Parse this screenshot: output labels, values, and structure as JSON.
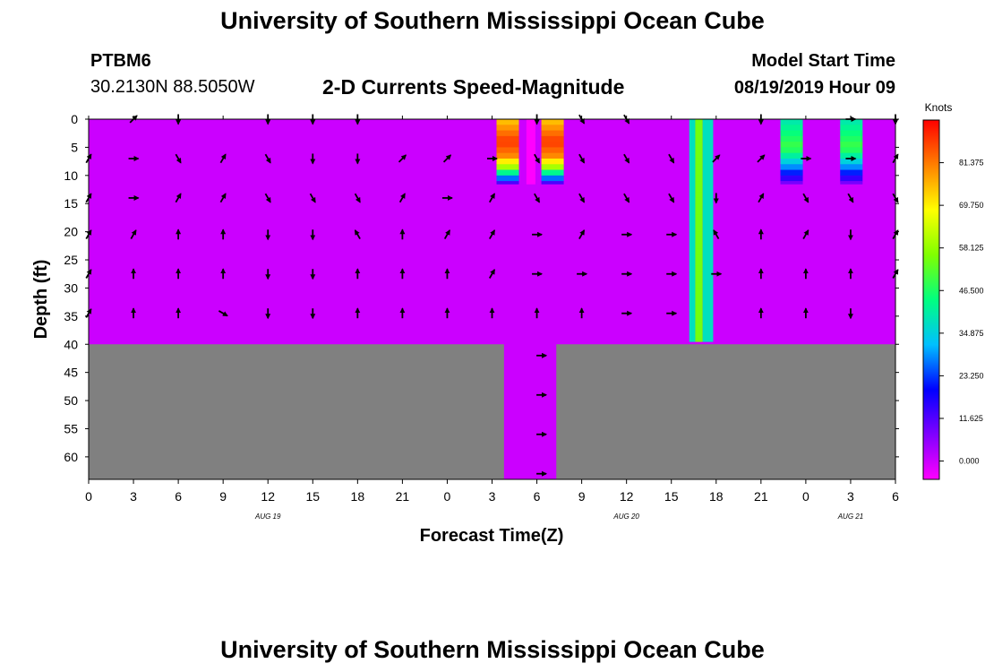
{
  "page": {
    "title_top": "University of Southern Mississippi Ocean Cube",
    "title_bottom": "University of Southern Mississippi Ocean Cube",
    "station_id": "PTBM6",
    "station_coords": "30.2130N 88.5050W",
    "chart_title": "2-D Currents Speed-Magnitude",
    "model_start_label": "Model Start Time",
    "model_start_value": "08/19/2019 Hour 09"
  },
  "chart_data": {
    "type": "heatmap",
    "title": "2-D Currents Speed-Magnitude",
    "xlabel": "Forecast Time(Z)",
    "ylabel": "Depth (ft)",
    "x_range_hours": [
      0,
      54
    ],
    "y_range_ft": [
      0,
      64
    ],
    "x_ticks": [
      {
        "h": 0,
        "label": "0"
      },
      {
        "h": 3,
        "label": "3"
      },
      {
        "h": 6,
        "label": "6"
      },
      {
        "h": 9,
        "label": "9"
      },
      {
        "h": 12,
        "label": "12"
      },
      {
        "h": 15,
        "label": "15"
      },
      {
        "h": 18,
        "label": "18"
      },
      {
        "h": 21,
        "label": "21"
      },
      {
        "h": 24,
        "label": "0"
      },
      {
        "h": 27,
        "label": "3"
      },
      {
        "h": 30,
        "label": "6"
      },
      {
        "h": 33,
        "label": "9"
      },
      {
        "h": 36,
        "label": "12"
      },
      {
        "h": 39,
        "label": "15"
      },
      {
        "h": 42,
        "label": "18"
      },
      {
        "h": 45,
        "label": "21"
      },
      {
        "h": 48,
        "label": "0"
      },
      {
        "h": 51,
        "label": "3"
      },
      {
        "h": 54,
        "label": "6"
      }
    ],
    "date_labels": [
      {
        "h": 12,
        "label": "AUG 19"
      },
      {
        "h": 36,
        "label": "AUG 20"
      },
      {
        "h": 51,
        "label": "AUG 21"
      }
    ],
    "y_ticks": [
      0,
      5,
      10,
      15,
      20,
      25,
      30,
      35,
      40,
      45,
      50,
      55,
      60
    ],
    "background_speed": 0,
    "land_below_ft": 40,
    "channel_h": [
      27.8,
      31.3
    ],
    "land_color": "#808080",
    "colorbar": {
      "units": "Knots",
      "labels": [
        "81.375",
        "69.750",
        "58.125",
        "46.500",
        "34.875",
        "23.250",
        "11.625",
        "0.000"
      ],
      "values": [
        81.375,
        69.75,
        58.125,
        46.5,
        34.875,
        23.25,
        11.625,
        0.0
      ],
      "min": -5,
      "max": 93,
      "stops": [
        "#ff00ff",
        "#8000ff",
        "#0000ff",
        "#00c0ff",
        "#00ff80",
        "#80ff00",
        "#ffff00",
        "#ff8000",
        "#ff0000"
      ]
    },
    "bands": [
      {
        "h0": 27.3,
        "h1": 28.8,
        "d0": 0,
        "d1": 11.5,
        "profile": [
          [
            0.5,
            75
          ],
          [
            4,
            88
          ],
          [
            6.5,
            80
          ],
          [
            8.5,
            60
          ],
          [
            10,
            34
          ],
          [
            11.5,
            12
          ]
        ]
      },
      {
        "h0": 29.3,
        "h1": 29.9,
        "d0": 0,
        "d1": 11.5,
        "profile": [
          [
            0.5,
            -5
          ],
          [
            11.5,
            -5
          ]
        ]
      },
      {
        "h0": 30.3,
        "h1": 31.8,
        "d0": 0,
        "d1": 11.5,
        "profile": [
          [
            0.5,
            75
          ],
          [
            4,
            88
          ],
          [
            6.5,
            80
          ],
          [
            8.5,
            60
          ],
          [
            10,
            34
          ],
          [
            11.5,
            12
          ]
        ]
      },
      {
        "h0": 40.2,
        "h1": 40.6,
        "d0": 0,
        "d1": 39.5,
        "profile": [
          [
            0.5,
            38
          ],
          [
            39.5,
            38
          ]
        ]
      },
      {
        "h0": 40.6,
        "h1": 41.1,
        "d0": 0,
        "d1": 39.5,
        "profile": [
          [
            0.5,
            55
          ],
          [
            39.5,
            55
          ]
        ]
      },
      {
        "h0": 41.1,
        "h1": 41.8,
        "d0": 0,
        "d1": 39.5,
        "profile": [
          [
            0.5,
            38
          ],
          [
            39.5,
            38
          ]
        ]
      },
      {
        "h0": 46.3,
        "h1": 47.8,
        "d0": 0,
        "d1": 11.5,
        "profile": [
          [
            0.5,
            40
          ],
          [
            5,
            50
          ],
          [
            8,
            32
          ],
          [
            10,
            18
          ],
          [
            11.5,
            8
          ]
        ]
      },
      {
        "h0": 50.3,
        "h1": 51.8,
        "d0": 0,
        "d1": 11.5,
        "profile": [
          [
            0.5,
            40
          ],
          [
            5,
            50
          ],
          [
            8,
            32
          ],
          [
            10,
            18
          ],
          [
            11.5,
            8
          ]
        ]
      }
    ],
    "vector_depths_ft": [
      0,
      7,
      14,
      20.5,
      27.5,
      34.5
    ],
    "vector_times_h": [
      0,
      3,
      6,
      9,
      12,
      15,
      18,
      21,
      24,
      27,
      30,
      33,
      36,
      39,
      42,
      45,
      48,
      51,
      54
    ],
    "vectors_dir_deg": [
      [
        null,
        45,
        180,
        null,
        180,
        180,
        180,
        null,
        null,
        null,
        180,
        150,
        150,
        null,
        null,
        180,
        null,
        90,
        180
      ],
      [
        30,
        90,
        150,
        30,
        150,
        180,
        180,
        45,
        45,
        90,
        150,
        150,
        150,
        150,
        45,
        45,
        90,
        90,
        30
      ],
      [
        30,
        90,
        30,
        30,
        150,
        150,
        150,
        30,
        90,
        30,
        150,
        150,
        150,
        150,
        180,
        30,
        150,
        150,
        150
      ],
      [
        30,
        30,
        0,
        0,
        180,
        180,
        330,
        0,
        30,
        30,
        90,
        30,
        90,
        90,
        330,
        0,
        30,
        180,
        30
      ],
      [
        30,
        0,
        0,
        0,
        180,
        180,
        0,
        0,
        0,
        30,
        90,
        90,
        90,
        90,
        90,
        0,
        0,
        0,
        30
      ],
      [
        30,
        0,
        0,
        120,
        180,
        180,
        0,
        0,
        0,
        0,
        0,
        0,
        90,
        90,
        null,
        0,
        0,
        180,
        null
      ]
    ],
    "channel_vectors": [
      {
        "h": 30.3,
        "d": 42,
        "dir_deg": 90
      },
      {
        "h": 30.3,
        "d": 49,
        "dir_deg": 90
      },
      {
        "h": 30.3,
        "d": 56,
        "dir_deg": 90
      },
      {
        "h": 30.3,
        "d": 63,
        "dir_deg": 90
      }
    ]
  }
}
